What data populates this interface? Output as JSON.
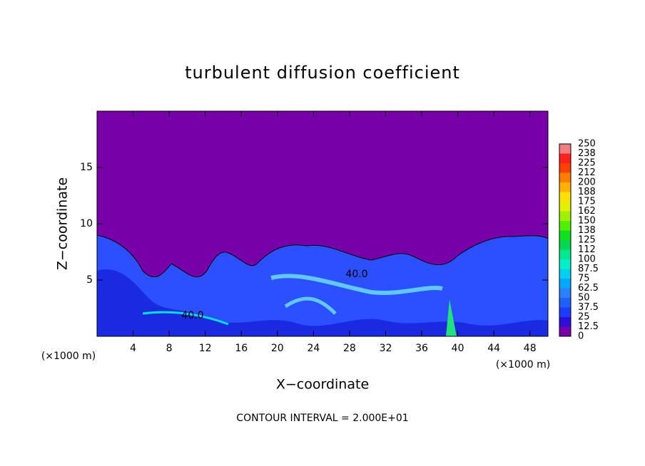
{
  "chart_data": {
    "type": "contour",
    "title": "turbulent diffusion coefficient",
    "x_label": "X−coordinate",
    "y_label": "Z−coordinate",
    "x_unit_left": "(×1000 m)",
    "x_unit_right": "(×1000 m)",
    "footer": "CONTOUR INTERVAL = 2.000E+01",
    "annotations": [
      "40.0",
      "40.0"
    ],
    "xlim": [
      0,
      50
    ],
    "xticks": [
      4,
      8,
      12,
      16,
      20,
      24,
      28,
      32,
      36,
      40,
      44,
      48
    ],
    "ylim": [
      0,
      20
    ],
    "yticks": [
      5,
      10,
      15
    ],
    "background_color": "#7800a8",
    "colorbar_levels": [
      0,
      12.5,
      25,
      37.5,
      50,
      62.5,
      75,
      87.5,
      100,
      112,
      125,
      138,
      150,
      162,
      175,
      188,
      200,
      212,
      225,
      238,
      250
    ],
    "colorbar_colors": [
      "#7800a8",
      "#2a10d8",
      "#1c3cff",
      "#2060ff",
      "#2a80ff",
      "#00a8ff",
      "#00d0f0",
      "#00f0c8",
      "#00e890",
      "#00d850",
      "#10e020",
      "#50f000",
      "#a0f000",
      "#e0f000",
      "#ffe000",
      "#ffb000",
      "#ff8000",
      "#ff4000",
      "#ff2020",
      "#f08080"
    ]
  }
}
